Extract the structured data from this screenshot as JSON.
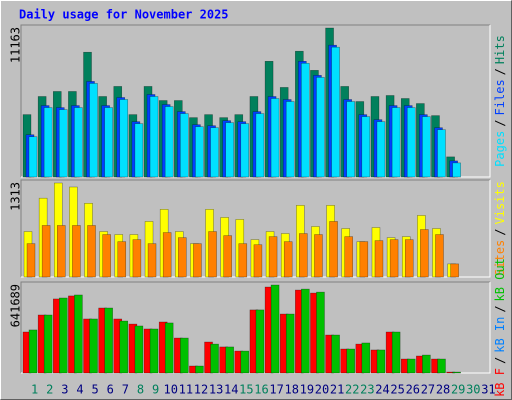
{
  "title": "Daily usage for November 2025",
  "chart_data": [
    {
      "type": "bar",
      "ylim": [
        0,
        11163
      ],
      "yticks": [
        11163
      ],
      "legend_reversed": true,
      "legend_separator": "/",
      "series": [
        {
          "name": "Hits",
          "color": "#00805c",
          "values": [
            4675,
            6032,
            6409,
            6409,
            9350,
            6032,
            6786,
            4675,
            6786,
            5730,
            5730,
            4449,
            4675,
            4449,
            4675,
            6032,
            8671,
            6711,
            9425,
            7992,
            11163,
            6786,
            5655,
            6032,
            6107,
            5881,
            5504,
            4600,
            1508,
            0,
            0
          ]
        },
        {
          "name": "Files",
          "color": "#0040ff",
          "values": [
            3166,
            5352,
            5201,
            5352,
            7162,
            5352,
            5956,
            4146,
            6182,
            5428,
            4900,
            3920,
            3845,
            4222,
            4146,
            4900,
            6031,
            5805,
            8670,
            7615,
            9877,
            5805,
            4674,
            4297,
            5352,
            5352,
            4674,
            3694,
            1206,
            0,
            0
          ]
        },
        {
          "name": "Pages",
          "color": "#00e0ff",
          "values": [
            3016,
            5202,
            5051,
            5202,
            7012,
            5202,
            5806,
            3996,
            6032,
            5278,
            4750,
            3770,
            3695,
            4072,
            3996,
            4750,
            5881,
            5655,
            8520,
            7465,
            9727,
            5655,
            4524,
            4147,
            5202,
            5202,
            4524,
            3544,
            1056,
            0,
            0
          ]
        }
      ]
    },
    {
      "type": "bar",
      "ylim": [
        0,
        1313
      ],
      "yticks": [
        1313
      ],
      "legend_reversed": true,
      "legend_separator": "/",
      "series": [
        {
          "name": "Visits",
          "color": "#ffff00",
          "values": [
            635,
            1101,
            1313,
            1257,
            1030,
            635,
            593,
            593,
            776,
            945,
            635,
            466,
            945,
            832,
            804,
            522,
            635,
            607,
            1001,
            705,
            1001,
            677,
            494,
            691,
            550,
            564,
            860,
            677,
            183,
            0,
            0
          ]
        },
        {
          "name": "Sites",
          "color": "#ff8000",
          "values": [
            466,
            720,
            720,
            720,
            720,
            593,
            494,
            522,
            466,
            621,
            550,
            466,
            635,
            578,
            466,
            451,
            564,
            494,
            607,
            593,
            776,
            564,
            494,
            508,
            522,
            522,
            663,
            593,
            183,
            0,
            0
          ]
        }
      ]
    },
    {
      "type": "bar",
      "ylim": [
        0,
        641689
      ],
      "yticks": [
        641689
      ],
      "legend_reversed": false,
      "legend_separator": "/",
      "categories": [
        "1",
        "2",
        "3",
        "4",
        "5",
        "6",
        "7",
        "8",
        "9",
        "10",
        "11",
        "12",
        "13",
        "14",
        "15",
        "16",
        "17",
        "18",
        "19",
        "20",
        "21",
        "22",
        "23",
        "24",
        "25",
        "26",
        "27",
        "28",
        "29",
        "30",
        "31"
      ],
      "category_colors": [
        "#00805c",
        "#00805c",
        "#000080",
        "#000080",
        "#000080",
        "#000080",
        "#000080",
        "#00805c",
        "#00805c",
        "#000080",
        "#000080",
        "#000080",
        "#000080",
        "#000080",
        "#00805c",
        "#00805c",
        "#000080",
        "#000080",
        "#000080",
        "#000080",
        "#000080",
        "#00805c",
        "#00805c",
        "#000080",
        "#000080",
        "#000080",
        "#000080",
        "#000080",
        "#00805c",
        "#00805c",
        "#000080"
      ],
      "series": [
        {
          "name": "kB F",
          "color": "#ff0000",
          "values": [
            299000,
            423000,
            540000,
            562000,
            394000,
            474000,
            394000,
            357000,
            321000,
            372000,
            255000,
            51000,
            226000,
            190000,
            160000,
            460000,
            627000,
            430000,
            605000,
            583000,
            277000,
            175000,
            211000,
            168000,
            299000,
            102000,
            124000,
            102000,
            7000,
            0,
            0
          ]
        },
        {
          "name": "kB In",
          "color": "#0080ff",
          "values": [
            0,
            0,
            0,
            0,
            0,
            0,
            0,
            0,
            0,
            0,
            0,
            0,
            0,
            0,
            0,
            0,
            0,
            0,
            0,
            0,
            0,
            0,
            0,
            0,
            0,
            0,
            0,
            0,
            0,
            0,
            0
          ]
        },
        {
          "name": "kB Out",
          "color": "#00c000",
          "values": [
            314000,
            423000,
            547000,
            569000,
            394000,
            474000,
            379000,
            343000,
            321000,
            365000,
            255000,
            51000,
            211000,
            190000,
            160000,
            460000,
            641689,
            430000,
            612000,
            590000,
            277000,
            175000,
            219000,
            168000,
            299000,
            102000,
            131000,
            102000,
            7000,
            0,
            0
          ]
        }
      ]
    }
  ]
}
